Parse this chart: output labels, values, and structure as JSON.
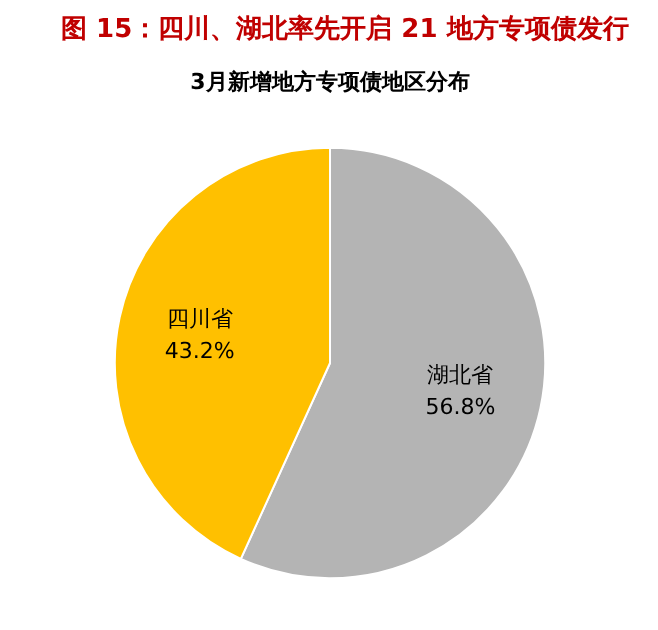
{
  "chart_data": {
    "type": "pie",
    "title": "图 15：四川、湖北率先开启 21 地方专项债发行",
    "subtitle": "3月新增地方专项债地区分布",
    "categories": [
      "湖北省",
      "四川省"
    ],
    "values": [
      56.8,
      43.2
    ],
    "colors": [
      "#b4b4b4",
      "#ffc000"
    ],
    "value_labels": [
      "56.8%",
      "43.2%"
    ]
  }
}
